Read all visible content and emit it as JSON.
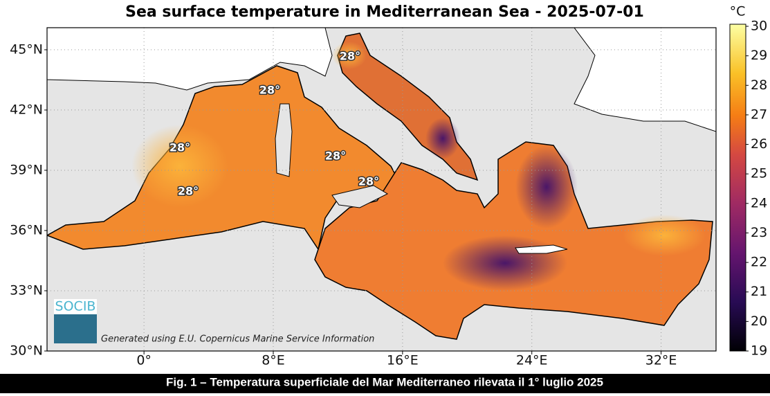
{
  "header": {
    "title": "Sea surface temperature in Mediterranean Sea - 2025-07-01"
  },
  "map": {
    "xlim": [
      -6,
      35.4
    ],
    "ylim": [
      30,
      46.1
    ],
    "xticks": [
      {
        "value": 0,
        "label": "0°"
      },
      {
        "value": 8,
        "label": "8°E"
      },
      {
        "value": 16,
        "label": "16°E"
      },
      {
        "value": 24,
        "label": "24°E"
      },
      {
        "value": 32,
        "label": "32°E"
      }
    ],
    "yticks": [
      {
        "value": 30,
        "label": "30°N"
      },
      {
        "value": 33,
        "label": "33°N"
      },
      {
        "value": 36,
        "label": "36°N"
      },
      {
        "value": 39,
        "label": "39°N"
      },
      {
        "value": 42,
        "label": "42°N"
      },
      {
        "value": 45,
        "label": "45°N"
      }
    ],
    "grid": true,
    "annotations": [
      "28°",
      "28°",
      "28°",
      "28°",
      "28°",
      "28°"
    ],
    "logo": "SOCIB",
    "credit": "Generated using E.U. Copernicus Marine Service Information"
  },
  "colorbar": {
    "unit": "°C",
    "lim": [
      19,
      30
    ],
    "ticks": [
      19,
      20,
      21,
      22,
      23,
      24,
      25,
      26,
      27,
      28,
      29,
      30
    ]
  },
  "caption": "Fig. 1 – Temperatura superficiale del Mar Mediterraneo rilevata il 1° luglio 2025"
}
